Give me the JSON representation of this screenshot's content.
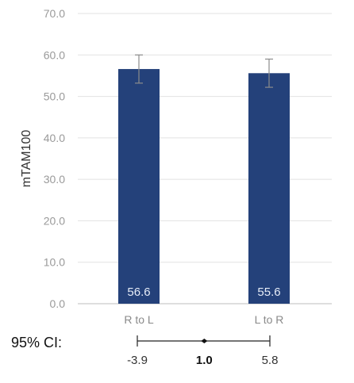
{
  "chart_data": {
    "type": "bar",
    "title": "",
    "xlabel": "",
    "ylabel": "mTAM100",
    "categories": [
      "R to L",
      "L to R"
    ],
    "values": [
      56.6,
      55.6
    ],
    "value_labels": [
      "56.6",
      "55.6"
    ],
    "error_bars": [
      {
        "low": 53.2,
        "high": 60.0
      },
      {
        "low": 52.2,
        "high": 59.0
      }
    ],
    "ylim": [
      0,
      70
    ],
    "yticks": [
      0,
      10,
      20,
      30,
      40,
      50,
      60,
      70
    ],
    "ytick_labels": [
      "0.0",
      "10.0",
      "20.0",
      "30.0",
      "40.0",
      "50.0",
      "60.0",
      "70.0"
    ],
    "grid": true,
    "legend": "none",
    "bar_color": "#24417a",
    "error_color": "#8c8c8c",
    "grid_color": "#e2e2e2",
    "ci": {
      "label": "95% CI:",
      "low": -3.9,
      "estimate": 1.0,
      "high": 5.8,
      "low_label": "-3.9",
      "estimate_label": "1.0",
      "high_label": "5.8"
    }
  }
}
